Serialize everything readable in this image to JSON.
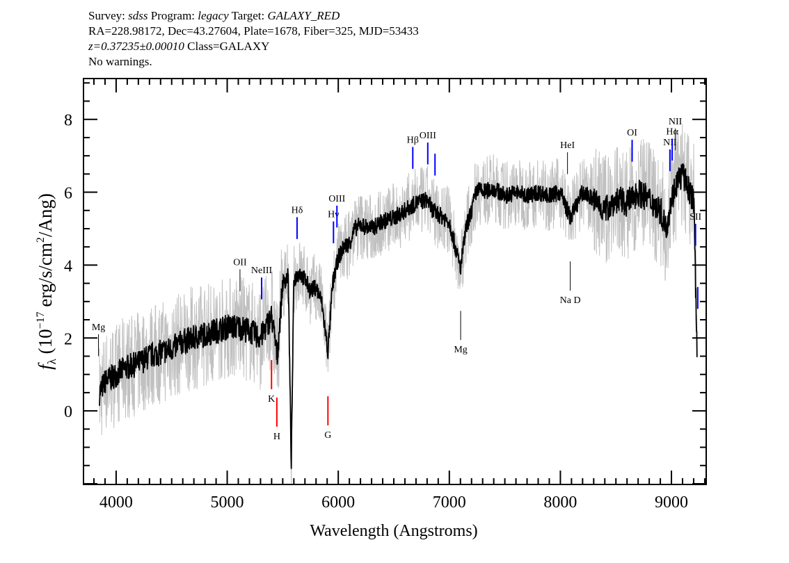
{
  "header": {
    "line1": {
      "survey_label": "Survey:",
      "survey": "sdss",
      "program_label": "Program:",
      "program": "legacy",
      "target_label": "Target:",
      "target": "GALAXY_RED"
    },
    "line2": "RA=228.98172, Dec=43.27604, Plate=1678, Fiber=325, MJD=53433",
    "line3": {
      "z": "z=0.37235±0.00010",
      "class": "Class=GALAXY"
    },
    "line4": "No warnings."
  },
  "chart_data": {
    "type": "line",
    "title": "",
    "xlabel": "Wavelength (Angstroms)",
    "ylabel": "f_λ (10^-17 erg/s/cm^2/Ang)",
    "xlim": [
      3706,
      9313
    ],
    "ylim": [
      -2.02,
      9.12
    ],
    "xticks": [
      4000,
      5000,
      6000,
      7000,
      8000,
      9000
    ],
    "yticks": [
      0,
      2,
      4,
      6,
      8
    ],
    "grid": false,
    "colors": {
      "flux": "#000000",
      "error": "#c0c0c0",
      "emission": "#0000ff",
      "absorption": "#ff0000",
      "other": "#000000"
    },
    "series": [
      {
        "name": "flux",
        "x": [
          3850,
          3900,
          3950,
          4000,
          4100,
          4200,
          4300,
          4400,
          4500,
          4600,
          4700,
          4800,
          4900,
          5000,
          5100,
          5200,
          5300,
          5400,
          5450,
          5500,
          5550,
          5577,
          5600,
          5650,
          5700,
          5750,
          5800,
          5850,
          5907,
          5950,
          6000,
          6050,
          6100,
          6150,
          6200,
          6300,
          6400,
          6500,
          6600,
          6700,
          6800,
          6850,
          6900,
          7000,
          7100,
          7150,
          7200,
          7250,
          7300,
          7400,
          7500,
          7600,
          7700,
          7800,
          7900,
          8000,
          8089,
          8200,
          8300,
          8400,
          8500,
          8600,
          8700,
          8800,
          8900,
          8950,
          9000,
          9050,
          9100,
          9150,
          9200,
          9230
        ],
        "y": [
          0.5,
          0.8,
          0.9,
          1.0,
          1.2,
          1.3,
          1.5,
          1.6,
          1.7,
          1.9,
          2.0,
          2.1,
          2.2,
          2.3,
          2.3,
          2.2,
          2.0,
          2.6,
          1.5,
          3.5,
          3.7,
          -1.5,
          3.6,
          3.8,
          3.6,
          3.3,
          3.4,
          3.0,
          1.6,
          3.5,
          4.2,
          4.5,
          4.6,
          5.0,
          5.1,
          5.0,
          5.2,
          5.3,
          5.5,
          5.7,
          5.8,
          5.5,
          5.4,
          5.2,
          3.9,
          5.0,
          5.5,
          6.1,
          6.0,
          6.1,
          5.9,
          6.0,
          5.9,
          6.0,
          5.9,
          6.0,
          5.3,
          6.0,
          5.8,
          5.5,
          5.8,
          5.7,
          6.0,
          5.8,
          5.5,
          5.0,
          5.8,
          6.3,
          6.5,
          6.1,
          5.8,
          1.8
        ]
      }
    ],
    "annotations": [
      {
        "label": "Mg",
        "wavelength": 3841,
        "kind": "other",
        "position": "above"
      },
      {
        "label": "OII",
        "wavelength": 5115,
        "kind": "other",
        "position": "above"
      },
      {
        "label": "NeIII",
        "wavelength": 5310,
        "kind": "emission",
        "position": "above"
      },
      {
        "label": "Hδ",
        "wavelength": 5629,
        "kind": "emission",
        "position": "above"
      },
      {
        "label": "Hγ",
        "wavelength": 5957,
        "kind": "emission",
        "position": "above"
      },
      {
        "label": "OIII",
        "wavelength": 5988,
        "kind": "emission",
        "position": "above"
      },
      {
        "label": "Hβ",
        "wavelength": 6671,
        "kind": "emission",
        "position": "above"
      },
      {
        "label": "OIII",
        "wavelength": 6806,
        "kind": "emission",
        "position": "above"
      },
      {
        "label": "",
        "wavelength": 6871,
        "kind": "emission",
        "position": "above"
      },
      {
        "label": "HeI",
        "wavelength": 8064,
        "kind": "other",
        "position": "above"
      },
      {
        "label": "OI",
        "wavelength": 8646,
        "kind": "emission",
        "position": "above"
      },
      {
        "label": "NII",
        "wavelength": 8986,
        "kind": "emission",
        "position": "above"
      },
      {
        "label": "Hα",
        "wavelength": 9007,
        "kind": "emission",
        "position": "above"
      },
      {
        "label": "NII",
        "wavelength": 9035,
        "kind": "other",
        "position": "above"
      },
      {
        "label": "SII",
        "wavelength": 9217,
        "kind": "emission",
        "position": "above"
      },
      {
        "label": "",
        "wavelength": 9237,
        "kind": "emission",
        "position": "above"
      },
      {
        "label": "K",
        "wavelength": 5399,
        "kind": "absorption",
        "position": "below"
      },
      {
        "label": "H",
        "wavelength": 5447,
        "kind": "absorption",
        "position": "below"
      },
      {
        "label": "G",
        "wavelength": 5907,
        "kind": "absorption",
        "position": "below"
      },
      {
        "label": "Mg",
        "wavelength": 7102,
        "kind": "other",
        "position": "below"
      },
      {
        "label": "Na D",
        "wavelength": 8089,
        "kind": "other",
        "position": "below"
      }
    ]
  }
}
